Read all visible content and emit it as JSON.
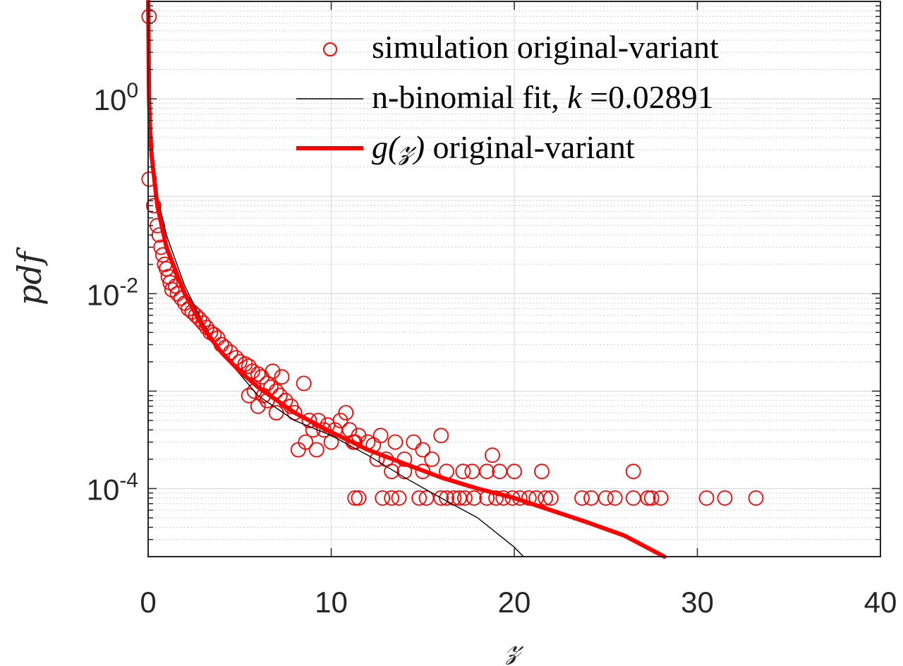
{
  "chart_data": {
    "type": "scatter",
    "xlabel": "𝓏",
    "ylabel": "pdf",
    "xlim": [
      0,
      40
    ],
    "ylim": [
      2e-05,
      10
    ],
    "yscale": "log",
    "grid": true,
    "minor_grid": true,
    "legend_placement": "top-right",
    "x_ticks": [
      {
        "value": 0,
        "label": "0"
      },
      {
        "value": 10,
        "label": "10"
      },
      {
        "value": 20,
        "label": "20"
      },
      {
        "value": 30,
        "label": "30"
      },
      {
        "value": 40,
        "label": "40"
      }
    ],
    "y_ticks": [
      {
        "value": 1,
        "base": "10",
        "exp": "0"
      },
      {
        "value": 0.01,
        "base": "10",
        "exp": "-2"
      },
      {
        "value": 0.0001,
        "base": "10",
        "exp": "-4"
      }
    ],
    "series": [
      {
        "name": "simulation original-variant",
        "kind": "scatter",
        "marker": "circle-open",
        "color": "#ff0000",
        "points": [
          [
            0.05,
            7.0
          ],
          [
            0.05,
            0.15
          ],
          [
            0.3,
            0.08
          ],
          [
            0.5,
            0.05
          ],
          [
            0.6,
            0.04
          ],
          [
            0.7,
            0.03
          ],
          [
            0.8,
            0.025
          ],
          [
            0.9,
            0.02
          ],
          [
            1.0,
            0.018
          ],
          [
            1.1,
            0.015
          ],
          [
            1.2,
            0.013
          ],
          [
            1.3,
            0.011
          ],
          [
            1.5,
            0.012
          ],
          [
            1.6,
            0.01
          ],
          [
            1.8,
            0.009
          ],
          [
            2.0,
            0.008
          ],
          [
            2.2,
            0.007
          ],
          [
            2.4,
            0.0065
          ],
          [
            2.6,
            0.006
          ],
          [
            2.8,
            0.0055
          ],
          [
            3.0,
            0.005
          ],
          [
            3.2,
            0.0045
          ],
          [
            3.4,
            0.004
          ],
          [
            3.6,
            0.0038
          ],
          [
            3.8,
            0.0035
          ],
          [
            4.0,
            0.003
          ],
          [
            4.2,
            0.0028
          ],
          [
            4.5,
            0.0025
          ],
          [
            4.8,
            0.0022
          ],
          [
            5.0,
            0.002
          ],
          [
            5.3,
            0.0019
          ],
          [
            5.5,
            0.0018
          ],
          [
            5.7,
            0.0016
          ],
          [
            6.0,
            0.0015
          ],
          [
            6.2,
            0.0014
          ],
          [
            6.5,
            0.0012
          ],
          [
            6.7,
            0.0011
          ],
          [
            7.0,
            0.001
          ],
          [
            7.2,
            0.0009
          ],
          [
            7.5,
            0.0008
          ],
          [
            7.8,
            0.0007
          ],
          [
            8.0,
            0.0006
          ],
          [
            5.5,
            0.0009
          ],
          [
            6.0,
            0.0007
          ],
          [
            6.5,
            0.0008
          ],
          [
            7.0,
            0.0006
          ],
          [
            5.8,
            0.001
          ],
          [
            6.3,
            0.0009
          ],
          [
            6.8,
            0.0016
          ],
          [
            7.3,
            0.0014
          ],
          [
            8.5,
            0.0012
          ],
          [
            8.8,
            0.0005
          ],
          [
            9.0,
            0.0004
          ],
          [
            9.3,
            0.0005
          ],
          [
            9.6,
            0.0004
          ],
          [
            9.8,
            0.00045
          ],
          [
            10.2,
            0.0004
          ],
          [
            10.5,
            0.0005
          ],
          [
            10.8,
            0.0006
          ],
          [
            11.0,
            0.0004
          ],
          [
            11.3,
            0.0003
          ],
          [
            11.5,
            0.00035
          ],
          [
            12.0,
            0.0003
          ],
          [
            12.3,
            0.00028
          ],
          [
            12.7,
            0.00035
          ],
          [
            13.0,
            0.0002
          ],
          [
            8.2,
            0.00025
          ],
          [
            8.6,
            0.0003
          ],
          [
            9.2,
            0.00025
          ],
          [
            10.0,
            0.0003
          ],
          [
            11.2,
            0.0003
          ],
          [
            12.5,
            0.0002
          ],
          [
            13.5,
            0.0003
          ],
          [
            14.0,
            0.0002
          ],
          [
            14.5,
            0.0003
          ],
          [
            15.0,
            0.00025
          ],
          [
            15.5,
            0.0002
          ],
          [
            16.0,
            0.00035
          ],
          [
            13.3,
            0.00015
          ],
          [
            14.0,
            0.00015
          ],
          [
            15.0,
            0.00015
          ],
          [
            16.3,
            0.00015
          ],
          [
            17.2,
            0.00015
          ],
          [
            17.7,
            0.00015
          ],
          [
            18.5,
            0.00015
          ],
          [
            19.2,
            0.00015
          ],
          [
            20.0,
            0.00015
          ],
          [
            21.5,
            0.00015
          ],
          [
            26.5,
            0.00015
          ],
          [
            18.8,
            0.00022
          ],
          [
            11.3,
            8e-05
          ],
          [
            11.5,
            8e-05
          ],
          [
            12.8,
            8e-05
          ],
          [
            13.3,
            8e-05
          ],
          [
            13.7,
            8e-05
          ],
          [
            14.8,
            8e-05
          ],
          [
            15.2,
            8e-05
          ],
          [
            16.0,
            8e-05
          ],
          [
            16.3,
            8e-05
          ],
          [
            16.7,
            8e-05
          ],
          [
            17.0,
            8e-05
          ],
          [
            17.3,
            8e-05
          ],
          [
            17.8,
            8e-05
          ],
          [
            18.5,
            8e-05
          ],
          [
            19.0,
            8e-05
          ],
          [
            19.4,
            8e-05
          ],
          [
            19.9,
            8e-05
          ],
          [
            20.3,
            8e-05
          ],
          [
            20.8,
            8e-05
          ],
          [
            21.2,
            8e-05
          ],
          [
            21.7,
            8e-05
          ],
          [
            22.0,
            8e-05
          ],
          [
            23.7,
            8e-05
          ],
          [
            24.2,
            8e-05
          ],
          [
            25.0,
            8e-05
          ],
          [
            25.5,
            8e-05
          ],
          [
            26.5,
            8e-05
          ],
          [
            27.3,
            8e-05
          ],
          [
            27.5,
            8e-05
          ],
          [
            28.0,
            8e-05
          ],
          [
            30.5,
            8e-05
          ],
          [
            31.5,
            8e-05
          ],
          [
            33.2,
            8e-05
          ]
        ]
      },
      {
        "name": "n-binomial fit, k =0.02891",
        "kind": "line",
        "color": "#000000",
        "points": [
          [
            0.05,
            0.35
          ],
          [
            0.2,
            0.2
          ],
          [
            0.5,
            0.1
          ],
          [
            1.0,
            0.04
          ],
          [
            2.0,
            0.012
          ],
          [
            3.0,
            0.005
          ],
          [
            4.0,
            0.0025
          ],
          [
            5.0,
            0.0015
          ],
          [
            6.0,
            0.0009
          ],
          [
            8.0,
            0.0005
          ],
          [
            10.0,
            0.00035
          ],
          [
            12.0,
            0.00022
          ],
          [
            14.0,
            0.00013
          ],
          [
            16.0,
            8e-05
          ],
          [
            18.0,
            5e-05
          ],
          [
            20.0,
            2.5e-05
          ],
          [
            20.5,
            2e-05
          ]
        ]
      },
      {
        "name": "g(𝓏) original-variant",
        "kind": "line",
        "color": "#ff0000",
        "points": [
          [
            0.0,
            10
          ],
          [
            0.05,
            1.0
          ],
          [
            0.1,
            0.5
          ],
          [
            0.2,
            0.25
          ],
          [
            0.5,
            0.08
          ],
          [
            1.0,
            0.03
          ],
          [
            2.0,
            0.01
          ],
          [
            3.0,
            0.0045
          ],
          [
            4.0,
            0.0025
          ],
          [
            5.0,
            0.0016
          ],
          [
            6.0,
            0.0011
          ],
          [
            8.0,
            0.0006
          ],
          [
            10.0,
            0.00038
          ],
          [
            12.0,
            0.00025
          ],
          [
            14.0,
            0.00018
          ],
          [
            16.0,
            0.00013
          ],
          [
            18.0,
            0.0001
          ],
          [
            20.0,
            8e-05
          ],
          [
            22.0,
            6e-05
          ],
          [
            24.0,
            4.5e-05
          ],
          [
            26.0,
            3.3e-05
          ],
          [
            28.2,
            2e-05
          ]
        ]
      }
    ]
  },
  "legend": {
    "items": [
      {
        "text": "simulation original-variant"
      },
      {
        "text_pre": "n-binomial fit, ",
        "text_var": "k",
        "text_post": " =0.02891"
      },
      {
        "text_func": "g(𝓏)",
        "text_post": " original-variant"
      }
    ]
  }
}
